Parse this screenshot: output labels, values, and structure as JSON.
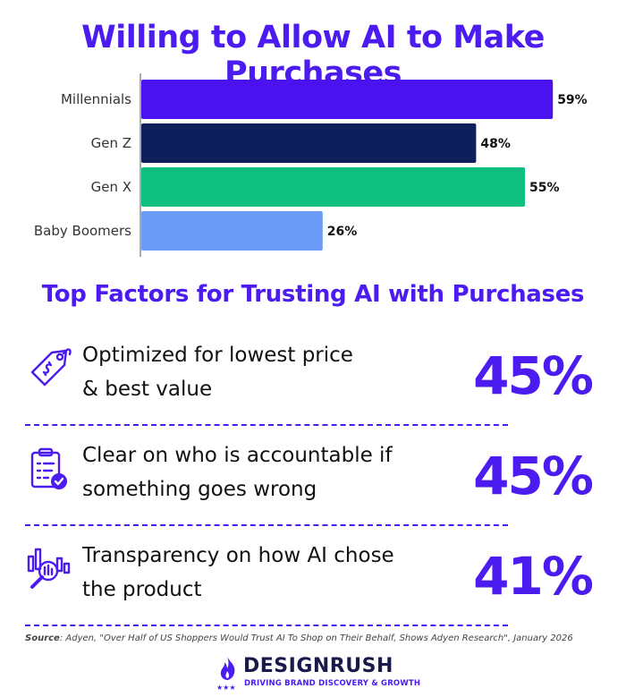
{
  "colors": {
    "accent": "#4b1bf0",
    "millennials": "#4b12f0",
    "gen_z": "#0e1f5b",
    "gen_x": "#0fbf7f",
    "baby_boomers": "#6b9cf5"
  },
  "chart_data": {
    "type": "bar",
    "orientation": "horizontal",
    "title": "Willing to Allow AI to Make Purchases",
    "categories": [
      "Millennials",
      "Gen Z",
      "Gen X",
      "Baby Boomers"
    ],
    "values": [
      59,
      48,
      55,
      26
    ],
    "value_labels": [
      "59%",
      "48%",
      "55%",
      "26%"
    ],
    "bar_colors": [
      "#4b12f0",
      "#0e1f5b",
      "#0fbf7f",
      "#6b9cf5"
    ],
    "xlim": [
      0,
      60
    ],
    "grid": false,
    "legend": "none"
  },
  "factors_title": "Top Factors for Trusting AI with Purchases",
  "factors": [
    {
      "icon": "price-tag-icon",
      "line1": "Optimized for lowest price",
      "line2": "& best value",
      "percent": "45%"
    },
    {
      "icon": "clipboard-check-icon",
      "line1": "Clear on who is accountable if",
      "line2": "something goes wrong",
      "percent": "45%"
    },
    {
      "icon": "magnifier-chart-icon",
      "line1": "Transparency on how AI chose",
      "line2": "the product",
      "percent": "41%"
    }
  ],
  "source": {
    "label": "Source",
    "text": ": Adyen, \"Over Half of US Shoppers Would Trust AI To Shop on Their Behalf, Shows Adyen Research\", January 2026"
  },
  "brand": {
    "name": "DESIGNRUSH",
    "tagline": "DRIVING BRAND DISCOVERY & GROWTH"
  }
}
